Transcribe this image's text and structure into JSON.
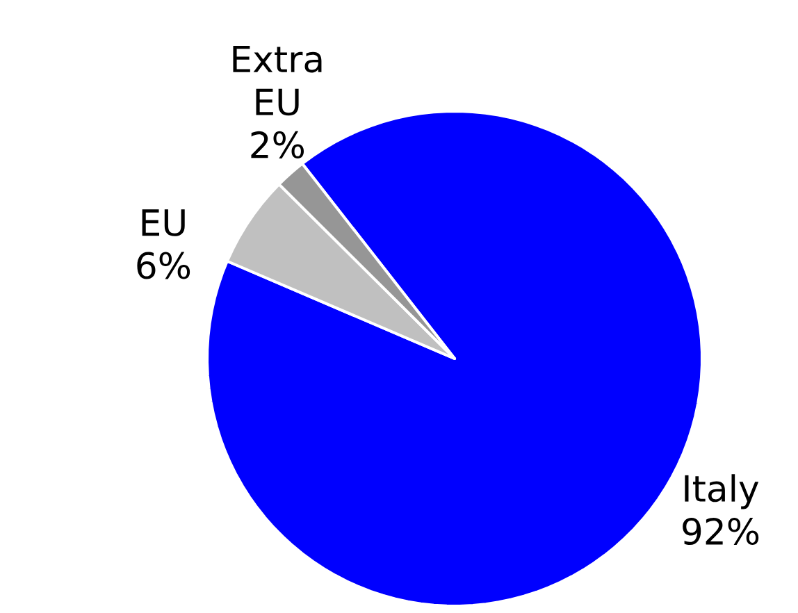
{
  "chart_data": {
    "type": "pie",
    "categories": [
      "Italy",
      "EU",
      "Extra EU"
    ],
    "values": [
      92,
      6,
      2
    ],
    "colors": [
      "#0000ff",
      "#c0c0c0",
      "#969696"
    ],
    "value_labels": [
      "92%",
      "6%",
      "2%"
    ]
  }
}
